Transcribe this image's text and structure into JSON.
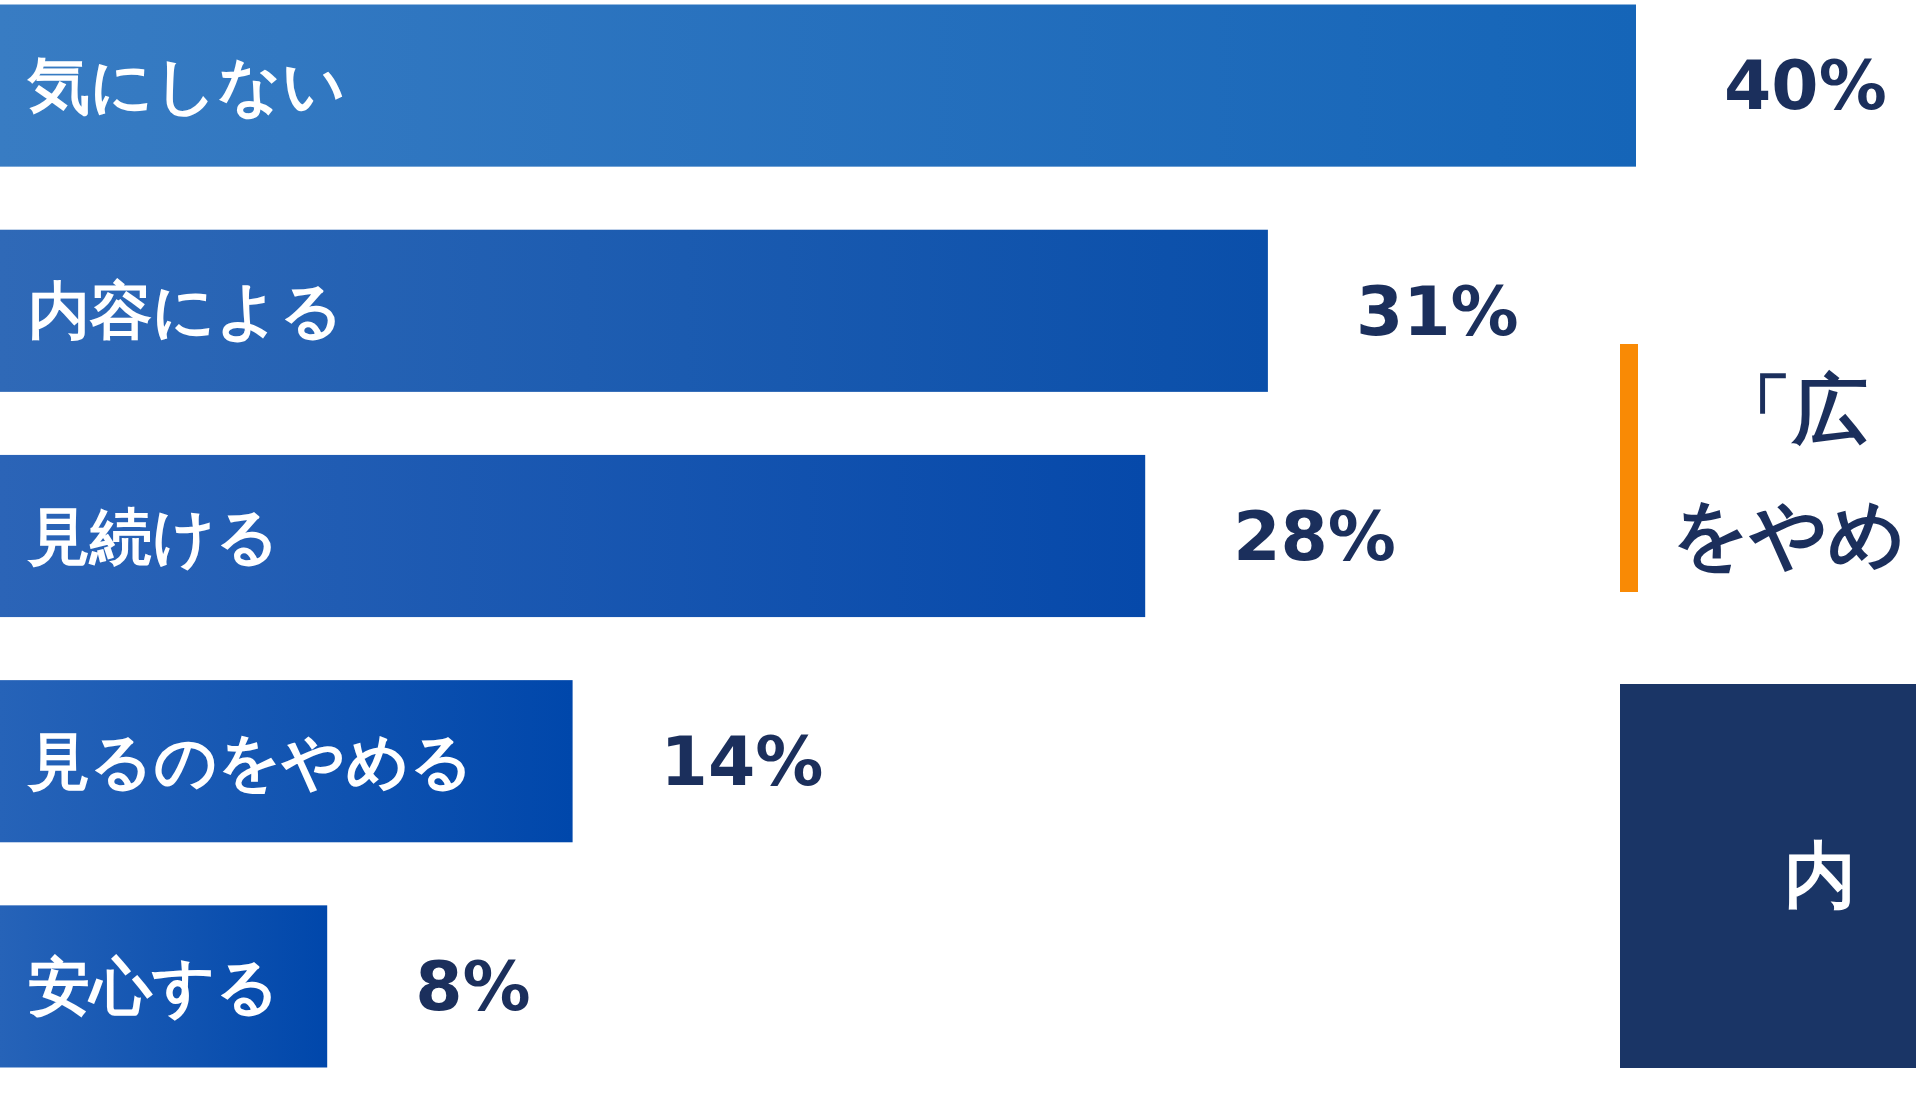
{
  "chart_data": {
    "type": "bar",
    "orientation": "horizontal",
    "categories": [
      "気にしない",
      "内容による",
      "見続ける",
      "見るのをやめる",
      "安心する"
    ],
    "values": [
      40,
      31,
      28,
      14,
      8
    ],
    "colors": [
      "#1565b8",
      "#0a4faa",
      "#0649aa",
      "#0047ab",
      "#0047ab"
    ],
    "value_labels": [
      "40%",
      "31%",
      "28%",
      "14%",
      "8%"
    ],
    "annotations": [
      "「広",
      "をやめ",
      "内"
    ]
  }
}
